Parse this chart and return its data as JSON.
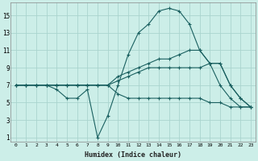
{
  "xlabel": "Humidex (Indice chaleur)",
  "bg_color": "#cceee8",
  "grid_color": "#aad4ce",
  "line_color": "#1a6060",
  "xlim": [
    -0.5,
    23.5
  ],
  "ylim": [
    0.5,
    16.5
  ],
  "xticks": [
    0,
    1,
    2,
    3,
    4,
    5,
    6,
    7,
    8,
    9,
    10,
    11,
    12,
    13,
    14,
    15,
    16,
    17,
    18,
    19,
    20,
    21,
    22,
    23
  ],
  "yticks": [
    1,
    3,
    5,
    7,
    9,
    11,
    13,
    15
  ],
  "line1_x": [
    0,
    1,
    2,
    3,
    4,
    5,
    6,
    7,
    8,
    9,
    10,
    11,
    12,
    13,
    14,
    15,
    16,
    17,
    18,
    19,
    20,
    21,
    22,
    23
  ],
  "line1_y": [
    7.0,
    7.0,
    7.0,
    7.0,
    6.5,
    5.5,
    5.5,
    6.5,
    1.0,
    3.5,
    7.0,
    10.5,
    13.0,
    14.0,
    15.5,
    15.8,
    15.5,
    14.0,
    11.0,
    9.5,
    7.0,
    5.5,
    4.5,
    4.5
  ],
  "line2_x": [
    0,
    1,
    2,
    3,
    4,
    5,
    6,
    7,
    8,
    9,
    10,
    11,
    12,
    13,
    14,
    15,
    16,
    17,
    18,
    19,
    20,
    21,
    22,
    23
  ],
  "line2_y": [
    7.0,
    7.0,
    7.0,
    7.0,
    7.0,
    7.0,
    7.0,
    7.0,
    7.0,
    7.0,
    8.0,
    8.5,
    9.0,
    9.5,
    10.0,
    10.0,
    10.5,
    11.0,
    11.0,
    9.5,
    9.5,
    7.0,
    5.5,
    4.5
  ],
  "line3_x": [
    0,
    1,
    2,
    3,
    4,
    5,
    6,
    7,
    8,
    9,
    10,
    11,
    12,
    13,
    14,
    15,
    16,
    17,
    18,
    19,
    20,
    21,
    22,
    23
  ],
  "line3_y": [
    7.0,
    7.0,
    7.0,
    7.0,
    7.0,
    7.0,
    7.0,
    7.0,
    7.0,
    7.0,
    7.5,
    8.0,
    8.5,
    9.0,
    9.0,
    9.0,
    9.0,
    9.0,
    9.0,
    9.5,
    9.5,
    7.0,
    5.5,
    4.5
  ],
  "line4_x": [
    0,
    1,
    2,
    3,
    4,
    5,
    6,
    7,
    8,
    9,
    10,
    11,
    12,
    13,
    14,
    15,
    16,
    17,
    18,
    19,
    20,
    21,
    22,
    23
  ],
  "line4_y": [
    7.0,
    7.0,
    7.0,
    7.0,
    7.0,
    7.0,
    7.0,
    7.0,
    7.0,
    7.0,
    6.0,
    5.5,
    5.5,
    5.5,
    5.5,
    5.5,
    5.5,
    5.5,
    5.5,
    5.0,
    5.0,
    4.5,
    4.5,
    4.5
  ]
}
